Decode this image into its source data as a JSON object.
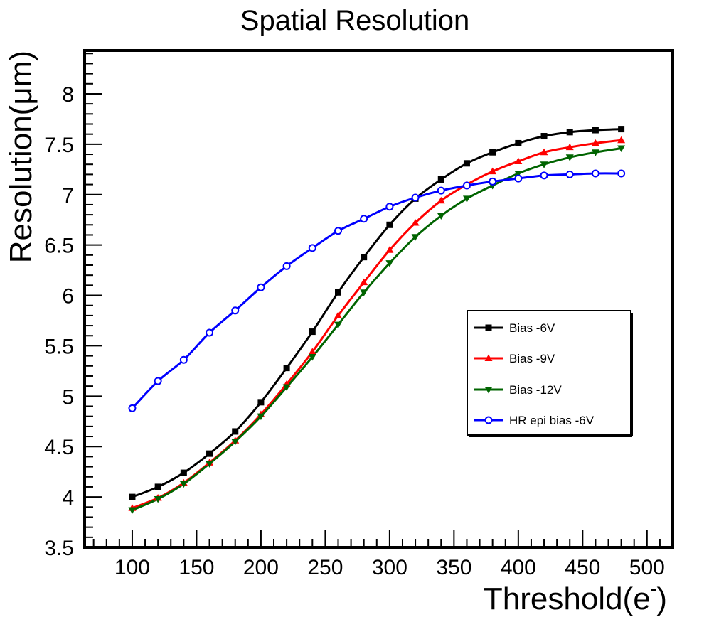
{
  "chart_data": {
    "type": "line",
    "title": "Spatial Resolution",
    "xlabel": "Threshold(e",
    "xlabel_sup": "-",
    "xlabel_close": ")",
    "ylabel": "Resolution(μm)",
    "xlim": [
      63,
      520
    ],
    "ylim": [
      3.5,
      8.43
    ],
    "x_ticks": [
      100,
      150,
      200,
      250,
      300,
      350,
      400,
      450,
      500
    ],
    "x_tick_labels": [
      "100",
      "150",
      "200",
      "250",
      "300",
      "350",
      "400",
      "450",
      "500"
    ],
    "y_ticks": [
      3.5,
      4,
      4.5,
      5,
      5.5,
      6,
      6.5,
      7,
      7.5,
      8
    ],
    "y_tick_labels": [
      "3.5",
      "4",
      "4.5",
      "5",
      "5.5",
      "6",
      "6.5",
      "7",
      "7.5",
      "8"
    ],
    "x": [
      100,
      120,
      140,
      160,
      180,
      200,
      220,
      240,
      260,
      280,
      300,
      320,
      340,
      360,
      380,
      400,
      420,
      440,
      460,
      480
    ],
    "series": [
      {
        "name": "Bias -6V",
        "color": "#000000",
        "marker": "square",
        "values": [
          4.0,
          4.1,
          4.24,
          4.43,
          4.65,
          4.94,
          5.28,
          5.64,
          6.03,
          6.38,
          6.7,
          6.96,
          7.15,
          7.31,
          7.42,
          7.51,
          7.58,
          7.62,
          7.64,
          7.65
        ]
      },
      {
        "name": "Bias -9V",
        "color": "#ff0000",
        "marker": "triangle-up",
        "values": [
          3.89,
          3.99,
          4.14,
          4.34,
          4.56,
          4.82,
          5.12,
          5.44,
          5.8,
          6.13,
          6.45,
          6.72,
          6.94,
          7.1,
          7.23,
          7.33,
          7.42,
          7.47,
          7.51,
          7.54
        ]
      },
      {
        "name": "Bias -12V",
        "color": "#006400",
        "marker": "triangle-down",
        "values": [
          3.87,
          3.98,
          4.13,
          4.33,
          4.55,
          4.8,
          5.09,
          5.39,
          5.71,
          6.03,
          6.32,
          6.58,
          6.79,
          6.96,
          7.09,
          7.21,
          7.3,
          7.37,
          7.42,
          7.46
        ]
      },
      {
        "name": "HR epi bias -6V",
        "color": "#0000ff",
        "marker": "open-circle",
        "values": [
          4.88,
          5.15,
          5.36,
          5.63,
          5.85,
          6.08,
          6.29,
          6.47,
          6.64,
          6.76,
          6.88,
          6.97,
          7.04,
          7.09,
          7.13,
          7.16,
          7.19,
          7.2,
          7.21,
          7.21
        ]
      }
    ],
    "legend_position": "right-middle",
    "grid": false
  }
}
